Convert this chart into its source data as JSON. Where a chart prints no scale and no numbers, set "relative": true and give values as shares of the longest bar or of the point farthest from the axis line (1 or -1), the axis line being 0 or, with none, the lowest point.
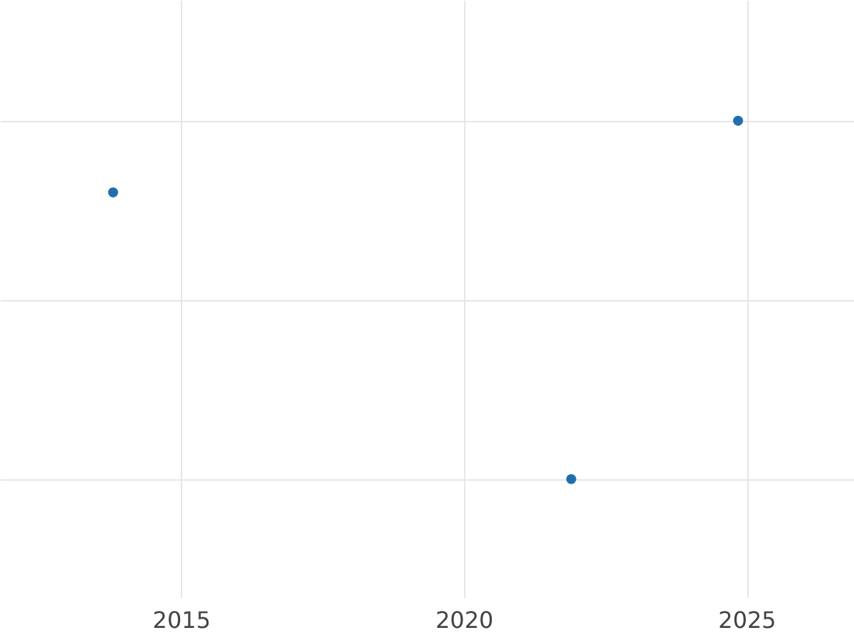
{
  "chart_data": {
    "type": "scatter",
    "relative": true,
    "x": [
      2013.8,
      2021.9,
      2024.85
    ],
    "series": [
      {
        "color": "#1f6fb0",
        "values": [
          0.8,
          0,
          1
        ]
      }
    ],
    "xlim": [
      2011.8,
      2026.9
    ],
    "xticks": [
      2015,
      2020,
      2025
    ],
    "grid": true,
    "marker": "circle",
    "tick_labels": "x"
  }
}
